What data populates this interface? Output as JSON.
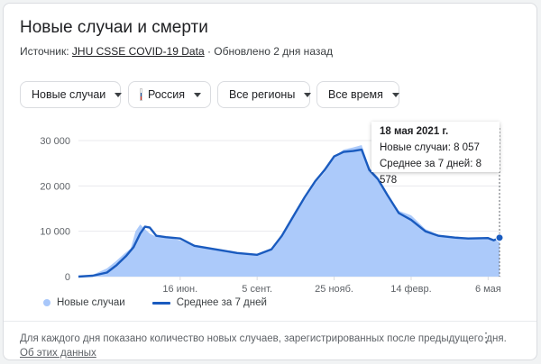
{
  "header": {
    "title": "Новые случаи и смерти",
    "source_prefix": "Источник:",
    "source_link": "JHU CSSE COVID-19 Data",
    "updated": "· Обновлено 2 дня назад"
  },
  "filters": {
    "metric": "Новые случаи",
    "country": "Россия",
    "region": "Все регионы",
    "period": "Все время"
  },
  "colors": {
    "area": "#a8c7fa",
    "line": "#1a5bbf",
    "grid": "#e8eaed"
  },
  "tooltip": {
    "date": "18 мая 2021 г.",
    "new_cases": "Новые случаи: 8 057",
    "avg7": "Среднее за 7 дней: 8 578"
  },
  "chart_data": {
    "type": "area",
    "ylim": [
      0,
      30000
    ],
    "y_ticks": [
      "30 000",
      "20 000",
      "10 000",
      "0"
    ],
    "y_tick_values": [
      30000,
      20000,
      10000,
      0
    ],
    "x_ticks": [
      "16 июн.",
      "5 сент.",
      "25 нояб.",
      "14 февр.",
      "6 мая"
    ],
    "x_tick_dates": [
      "2020-06-16",
      "2020-09-05",
      "2020-11-25",
      "2021-02-14",
      "2021-05-06"
    ],
    "x_range": [
      "2020-03-01",
      "2021-05-18"
    ],
    "series": [
      {
        "name": "Новые случаи",
        "kind": "area",
        "dates": [
          "2020-03-01",
          "2020-03-16",
          "2020-03-31",
          "2020-04-10",
          "2020-04-18",
          "2020-04-25",
          "2020-04-30",
          "2020-05-05",
          "2020-05-10",
          "2020-05-15",
          "2020-05-22",
          "2020-06-01",
          "2020-06-16",
          "2020-07-01",
          "2020-07-15",
          "2020-08-01",
          "2020-08-15",
          "2020-09-05",
          "2020-09-20",
          "2020-10-01",
          "2020-10-15",
          "2020-10-25",
          "2020-11-05",
          "2020-11-15",
          "2020-11-25",
          "2020-12-05",
          "2020-12-15",
          "2020-12-24",
          "2021-01-01",
          "2021-01-10",
          "2021-01-20",
          "2021-02-01",
          "2021-02-14",
          "2021-03-01",
          "2021-03-15",
          "2021-04-01",
          "2021-04-15",
          "2021-05-06",
          "2021-05-12",
          "2021-05-18"
        ],
        "values": [
          100,
          400,
          1800,
          3500,
          5000,
          6200,
          10000,
          11500,
          10500,
          9500,
          8800,
          8700,
          8000,
          6700,
          6200,
          5600,
          5100,
          5000,
          6000,
          9200,
          14000,
          17000,
          20500,
          23000,
          26500,
          28000,
          28500,
          29000,
          24000,
          22000,
          18000,
          14500,
          13500,
          10500,
          9200,
          8800,
          8400,
          8500,
          8100,
          8057
        ]
      },
      {
        "name": "Среднее за 7 дней",
        "kind": "line",
        "dates": [
          "2020-03-01",
          "2020-03-16",
          "2020-03-31",
          "2020-04-10",
          "2020-04-20",
          "2020-04-28",
          "2020-05-05",
          "2020-05-10",
          "2020-05-15",
          "2020-05-22",
          "2020-06-01",
          "2020-06-16",
          "2020-07-01",
          "2020-07-15",
          "2020-08-01",
          "2020-08-15",
          "2020-09-05",
          "2020-09-20",
          "2020-10-01",
          "2020-10-15",
          "2020-10-25",
          "2020-11-05",
          "2020-11-15",
          "2020-11-25",
          "2020-12-05",
          "2020-12-15",
          "2020-12-24",
          "2021-01-01",
          "2021-01-10",
          "2021-01-20",
          "2021-02-01",
          "2021-02-14",
          "2021-03-01",
          "2021-03-15",
          "2021-04-01",
          "2021-04-15",
          "2021-05-06",
          "2021-05-12",
          "2021-05-18"
        ],
        "values": [
          0,
          200,
          900,
          2500,
          4500,
          6500,
          9500,
          11000,
          10800,
          9000,
          8700,
          8400,
          6800,
          6300,
          5700,
          5200,
          4800,
          6000,
          9000,
          14000,
          17500,
          21000,
          23500,
          26500,
          27500,
          27700,
          28000,
          23500,
          21500,
          18000,
          14000,
          12500,
          10000,
          9000,
          8600,
          8400,
          8500,
          8000,
          8578
        ]
      }
    ],
    "highlight": {
      "date": "2021-05-18",
      "value": 8578
    }
  },
  "legend": {
    "area_label": "Новые случаи",
    "line_label": "Среднее за 7 дней"
  },
  "footer": {
    "note": "Для каждого дня показано количество новых случаев, зарегистрированных после предыдущего дня.",
    "about_link": "Об этих данных",
    "more": "⋮"
  }
}
